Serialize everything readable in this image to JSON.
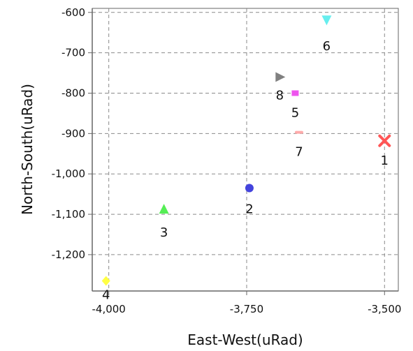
{
  "chart_data": {
    "type": "scatter",
    "title": "",
    "xlabel": "East-West(uRad)",
    "ylabel": "North-South(uRad)",
    "xlim": [
      -4030,
      -3475
    ],
    "ylim": [
      -1290,
      -590
    ],
    "xticks": [
      {
        "value": -4000,
        "label": "-4,000"
      },
      {
        "value": -3750,
        "label": "-3,750"
      },
      {
        "value": -3500,
        "label": "-3,500"
      }
    ],
    "yticks": [
      {
        "value": -600,
        "label": "-600"
      },
      {
        "value": -700,
        "label": "-700"
      },
      {
        "value": -800,
        "label": "-800"
      },
      {
        "value": -900,
        "label": "-900"
      },
      {
        "value": -1000,
        "label": "-1,000"
      },
      {
        "value": -1100,
        "label": "-1,100"
      },
      {
        "value": -1200,
        "label": "-1,200"
      }
    ],
    "grid": true,
    "points": [
      {
        "label": "1",
        "x": -3500,
        "y": -918,
        "marker": "x",
        "color": "#ff5555"
      },
      {
        "label": "2",
        "x": -3745,
        "y": -1035,
        "marker": "circle",
        "color": "#4444dd"
      },
      {
        "label": "3",
        "x": -3900,
        "y": -1088,
        "marker": "triangle-up",
        "color": "#55ee55"
      },
      {
        "label": "4",
        "x": -4005,
        "y": -1265,
        "marker": "diamond",
        "color": "#ffff44"
      },
      {
        "label": "5",
        "x": -3662,
        "y": -800,
        "marker": "square",
        "color": "#ee55ee"
      },
      {
        "label": "6",
        "x": -3605,
        "y": -618,
        "marker": "triangle-down",
        "color": "#66eeee"
      },
      {
        "label": "7",
        "x": -3655,
        "y": -897,
        "marker": "rect",
        "color": "#ffaaaa"
      },
      {
        "label": "8",
        "x": -3690,
        "y": -760,
        "marker": "triangle-right",
        "color": "#808080"
      }
    ]
  }
}
